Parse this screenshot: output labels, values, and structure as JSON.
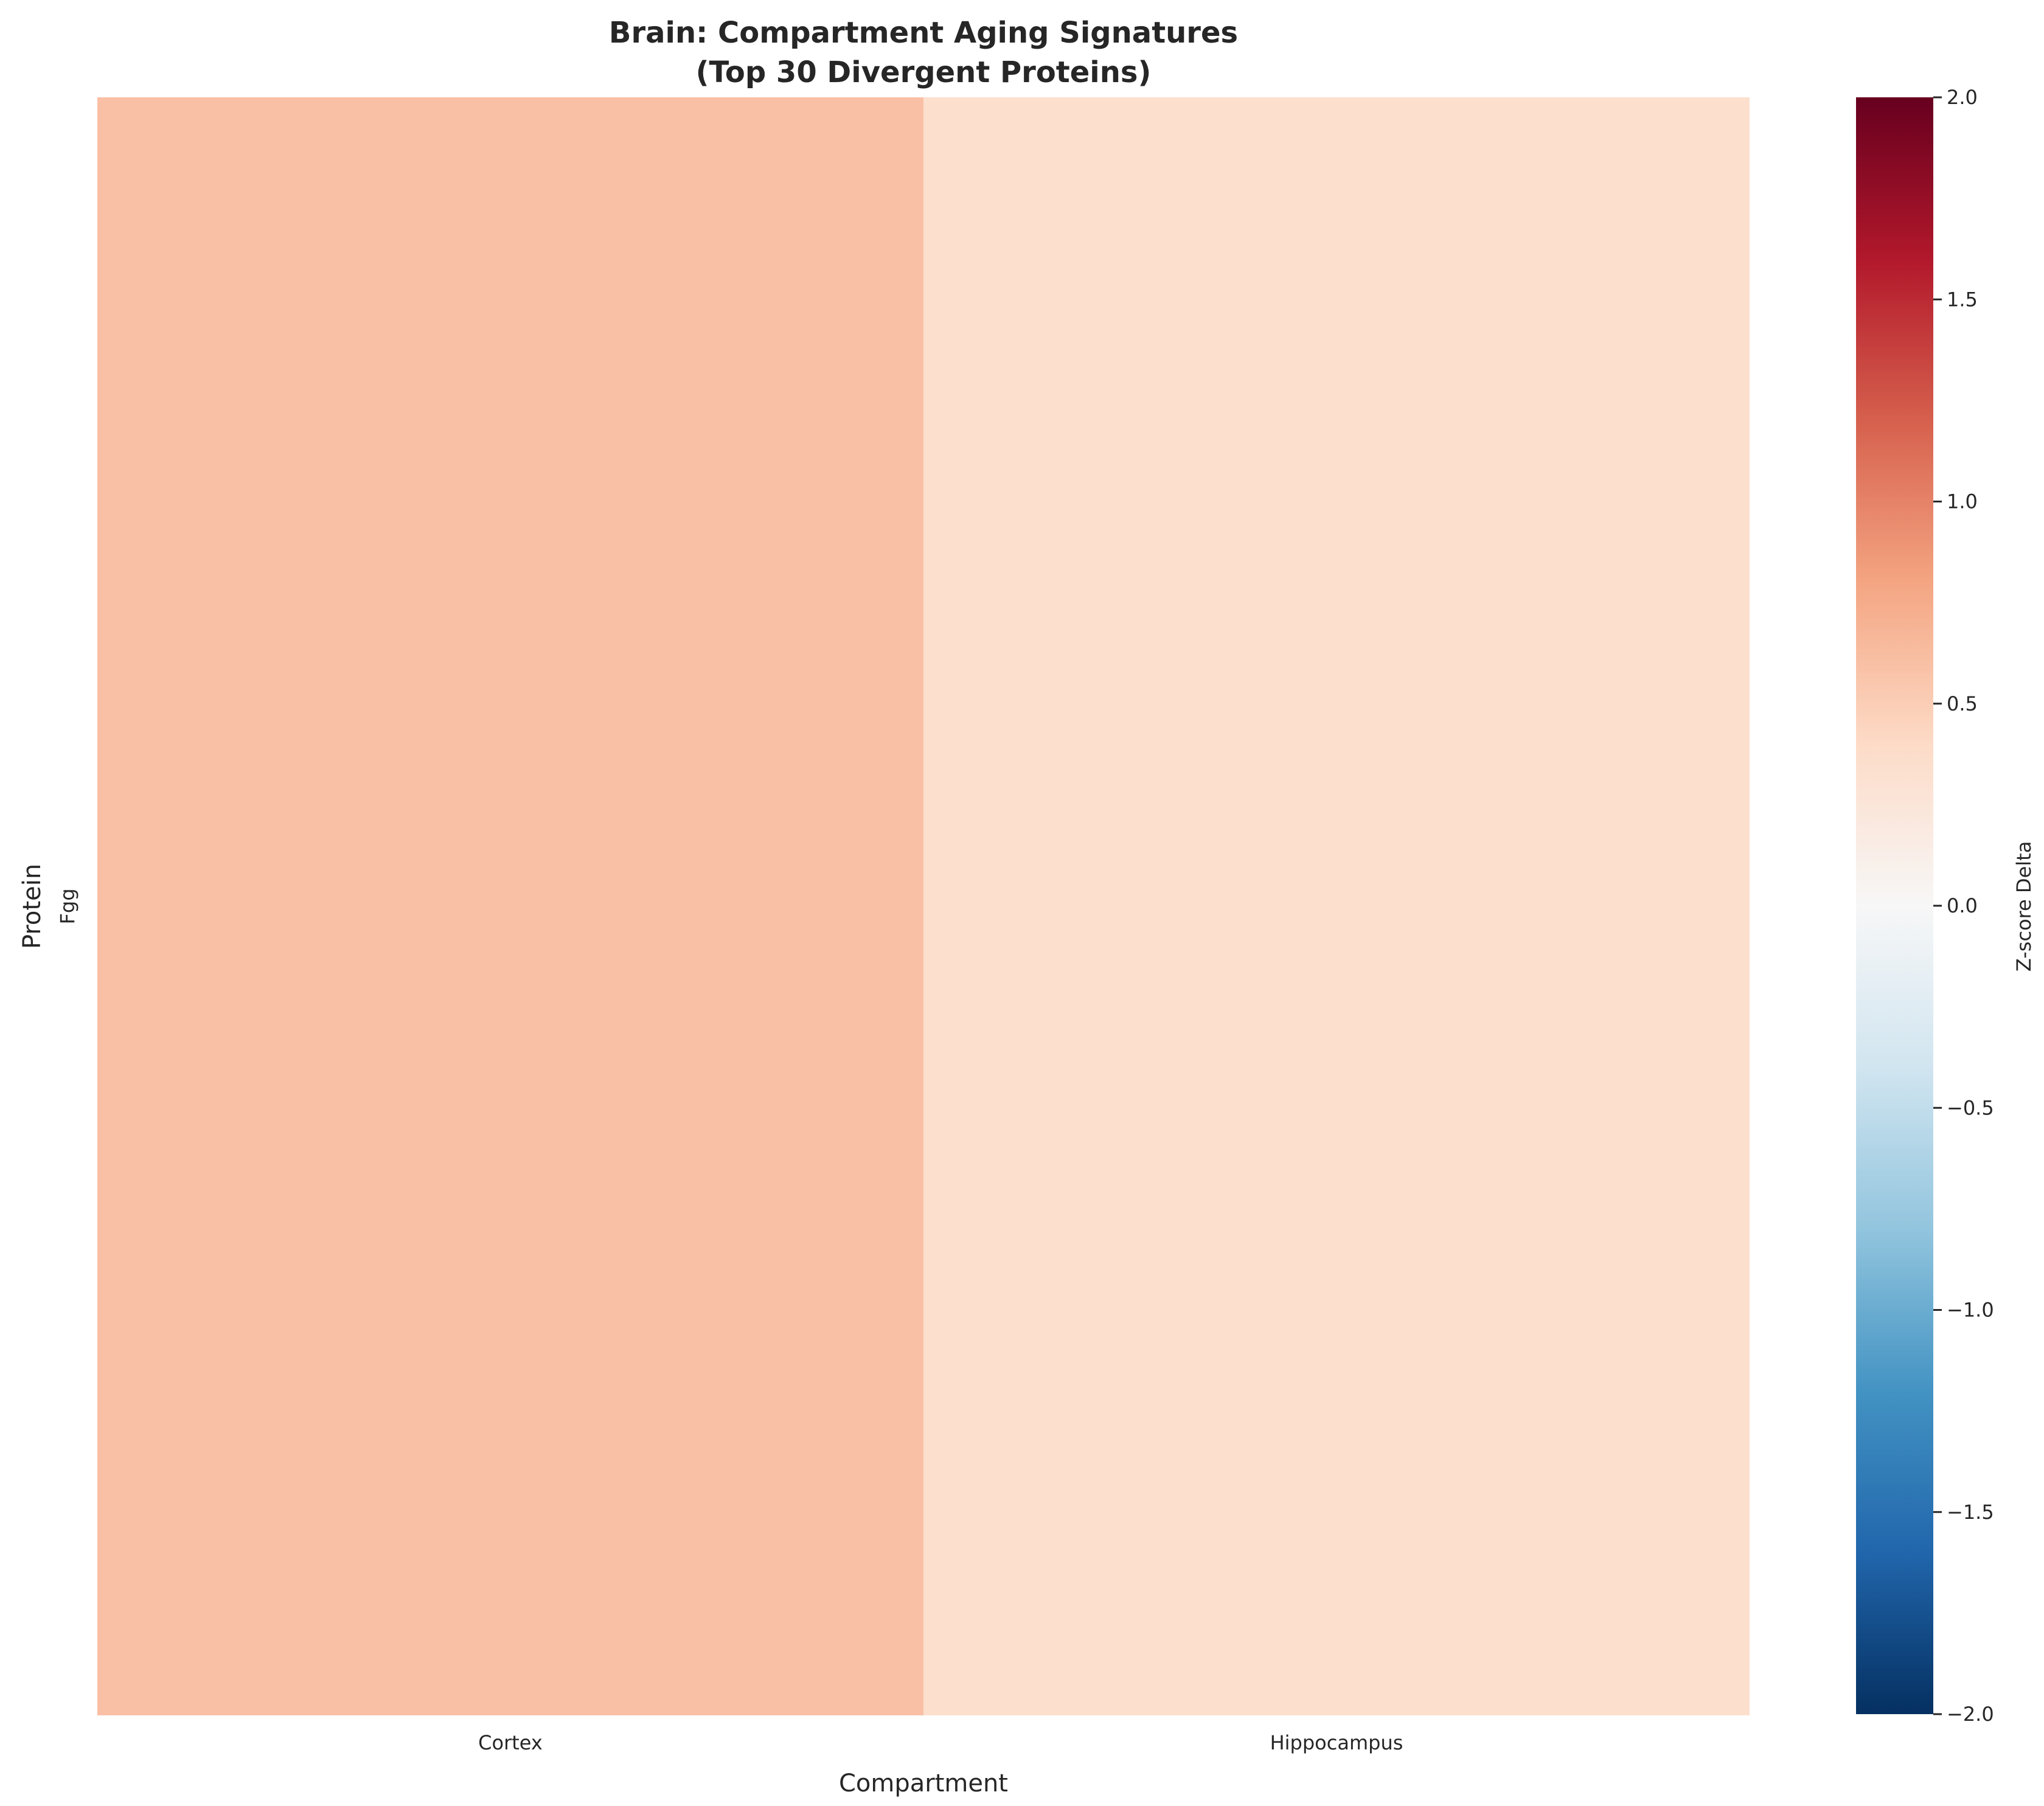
{
  "chart_data": {
    "type": "heatmap",
    "title": "Brain: Compartment Aging Signatures",
    "subtitle": "(Top 30 Divergent Proteins)",
    "xlabel": "Compartment",
    "ylabel": "Protein",
    "columns": [
      "Cortex",
      "Hippocampus"
    ],
    "rows": [
      "Fgg"
    ],
    "values": [
      [
        0.6,
        0.35
      ]
    ],
    "colorbar": {
      "label": "Z-score Delta",
      "min": -2.0,
      "max": 2.0,
      "colormap": "RdBu_r",
      "ticks": [
        {
          "value": 2.0,
          "label": "2.0"
        },
        {
          "value": 1.5,
          "label": "1.5"
        },
        {
          "value": 1.0,
          "label": "1.0"
        },
        {
          "value": 0.5,
          "label": "0.5"
        },
        {
          "value": 0.0,
          "label": "0.0"
        },
        {
          "value": -0.5,
          "label": "−0.5"
        },
        {
          "value": -1.0,
          "label": "−1.0"
        },
        {
          "value": -1.5,
          "label": "−1.5"
        },
        {
          "value": -2.0,
          "label": "−2.0"
        }
      ]
    }
  }
}
